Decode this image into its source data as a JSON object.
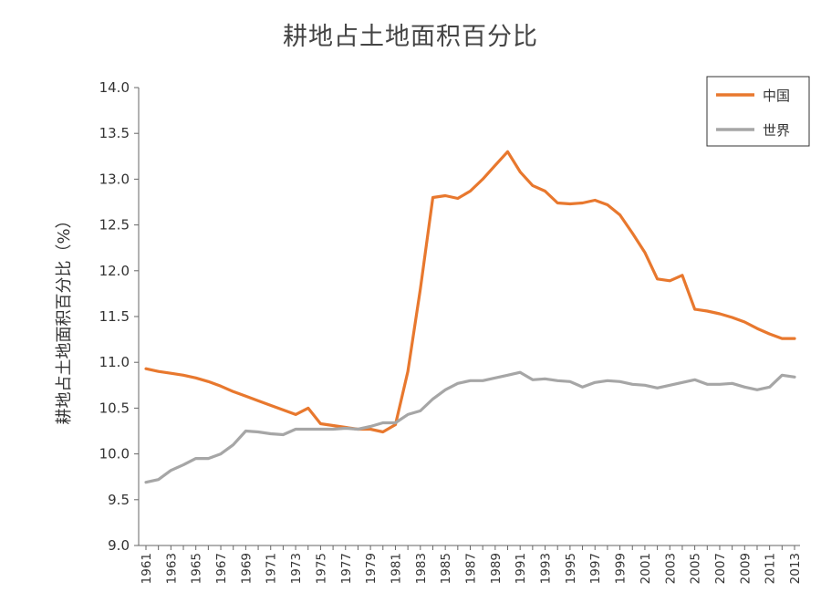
{
  "chart_data": {
    "type": "line",
    "title": "耕地占土地面积百分比",
    "ylabel": "耕地占土地面积百分比（%）",
    "xlabel": "",
    "ylim": [
      9.0,
      14.0
    ],
    "y_ticks": [
      "9.0",
      "9.5",
      "10.0",
      "10.5",
      "11.0",
      "11.5",
      "12.0",
      "12.5",
      "13.0",
      "13.5",
      "14.0"
    ],
    "x_tick_labels": [
      "1961",
      "1963",
      "1965",
      "1967",
      "1969",
      "1971",
      "1973",
      "1975",
      "1977",
      "1979",
      "1981",
      "1983",
      "1985",
      "1987",
      "1989",
      "1991",
      "1993",
      "1995",
      "1997",
      "1999",
      "2001",
      "2003",
      "2005",
      "2007",
      "2009",
      "2011",
      "2013"
    ],
    "x": [
      1961,
      1962,
      1963,
      1964,
      1965,
      1966,
      1967,
      1968,
      1969,
      1970,
      1971,
      1972,
      1973,
      1974,
      1975,
      1976,
      1977,
      1978,
      1979,
      1980,
      1981,
      1982,
      1983,
      1984,
      1985,
      1986,
      1987,
      1988,
      1989,
      1990,
      1991,
      1992,
      1993,
      1994,
      1995,
      1996,
      1997,
      1998,
      1999,
      2000,
      2001,
      2002,
      2003,
      2004,
      2005,
      2006,
      2007,
      2008,
      2009,
      2010,
      2011,
      2012,
      2013
    ],
    "grid": false,
    "legend_position": "top-right",
    "series": [
      {
        "name": "中国",
        "color": "#E8782E",
        "values": [
          10.93,
          10.9,
          10.88,
          10.86,
          10.83,
          10.79,
          10.74,
          10.68,
          10.63,
          10.58,
          10.53,
          10.48,
          10.43,
          10.5,
          10.33,
          10.31,
          10.29,
          10.27,
          10.27,
          10.24,
          10.32,
          10.9,
          11.8,
          12.8,
          12.82,
          12.79,
          12.87,
          13.0,
          13.15,
          13.3,
          13.08,
          12.93,
          12.87,
          12.74,
          12.73,
          12.74,
          12.77,
          12.72,
          12.61,
          12.41,
          12.2,
          11.91,
          11.89,
          11.95,
          11.58,
          11.56,
          11.53,
          11.49,
          11.44,
          11.37,
          11.31,
          11.26,
          11.26
        ]
      },
      {
        "name": "世界",
        "color": "#A6A6A6",
        "values": [
          9.69,
          9.72,
          9.82,
          9.88,
          9.95,
          9.95,
          10.0,
          10.1,
          10.25,
          10.24,
          10.22,
          10.21,
          10.27,
          10.27,
          10.27,
          10.27,
          10.28,
          10.27,
          10.3,
          10.34,
          10.34,
          10.43,
          10.47,
          10.6,
          10.7,
          10.77,
          10.8,
          10.8,
          10.83,
          10.86,
          10.89,
          10.81,
          10.82,
          10.8,
          10.79,
          10.73,
          10.78,
          10.8,
          10.79,
          10.76,
          10.75,
          10.72,
          10.75,
          10.78,
          10.81,
          10.76,
          10.76,
          10.77,
          10.73,
          10.7,
          10.73,
          10.86,
          10.84
        ]
      }
    ]
  }
}
